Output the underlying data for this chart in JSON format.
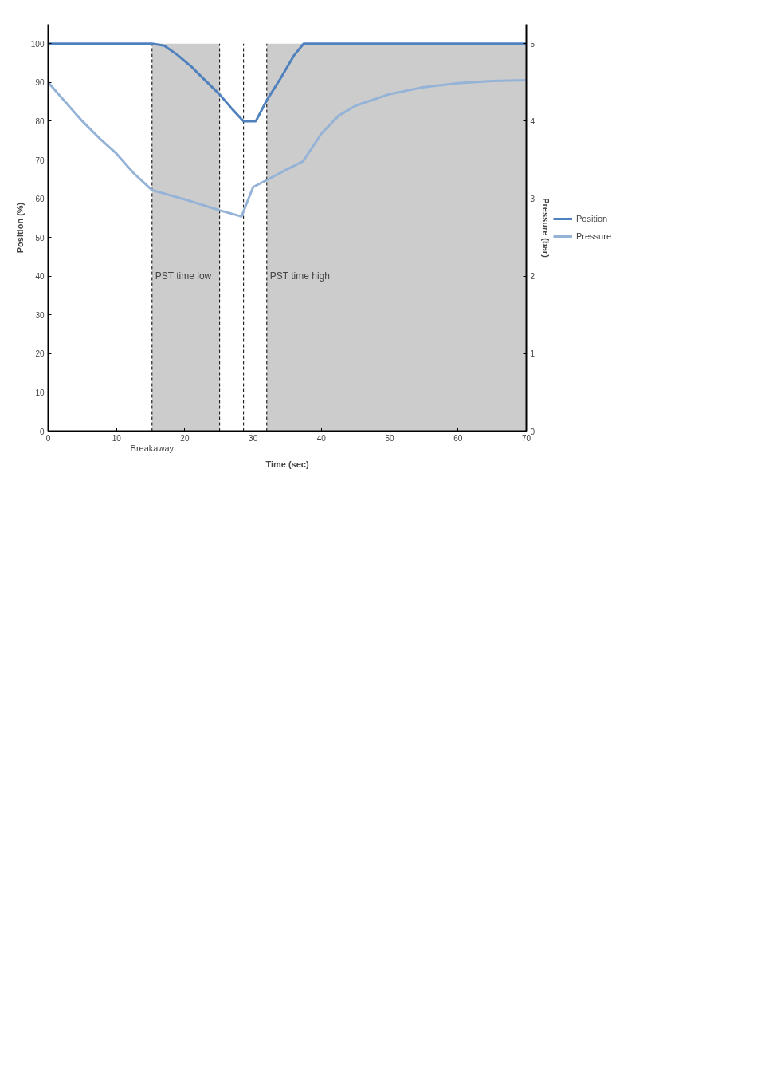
{
  "chart_data": {
    "type": "line",
    "xlabel": "Time (sec)",
    "ylabel": "Position (%)",
    "y2label": "Pressure (bar)",
    "xlim": [
      0,
      70
    ],
    "xticks": [
      0,
      10,
      20,
      30,
      40,
      50,
      60,
      70
    ],
    "ylim": [
      0,
      105
    ],
    "yticks": [
      0,
      10,
      20,
      30,
      40,
      50,
      60,
      70,
      80,
      90,
      100
    ],
    "y2lim": [
      0,
      5.25
    ],
    "y2ticks": [
      0,
      1,
      2,
      3,
      4,
      5
    ],
    "grid": false,
    "legend": "right",
    "marker": "none",
    "line_style": "solid",
    "series": [
      {
        "name": "Position",
        "color": "#4f81bd",
        "x": [
          0,
          15.2,
          17,
          19,
          21,
          23,
          25.1,
          27,
          28.6,
          30.4,
          32,
          34,
          36,
          37.4,
          70
        ],
        "values": [
          100,
          100,
          99.5,
          97,
          94,
          90.5,
          86.9,
          83,
          80,
          80,
          85.4,
          91,
          97,
          100,
          100
        ]
      },
      {
        "name": "Pressure",
        "color": "#95b3d7",
        "axis": "y2",
        "x": [
          0,
          2.5,
          5,
          7.5,
          10,
          12.5,
          15.2,
          20,
          25.1,
          28.3,
          30,
          32,
          35,
          37.3,
          40,
          42.5,
          45,
          50,
          55,
          60,
          65,
          70
        ],
        "values": [
          4.5,
          4.25,
          4.0,
          3.78,
          3.58,
          3.33,
          3.11,
          2.99,
          2.85,
          2.77,
          3.15,
          3.24,
          3.38,
          3.48,
          3.84,
          4.07,
          4.2,
          4.35,
          4.44,
          4.49,
          4.52,
          4.53
        ]
      }
    ],
    "bands": [
      {
        "axis": "x",
        "from": 15.2,
        "to": 25.1,
        "label": "PST time low",
        "color": "#cccccc"
      },
      {
        "axis": "x",
        "from": 32,
        "to": 70,
        "label": "PST time high",
        "color": "#cccccc"
      }
    ],
    "ref_lines": [
      {
        "axis": "x",
        "value": 15.2,
        "label": "Breakaway",
        "line_style": "dashed",
        "color": "#000000"
      },
      {
        "axis": "x",
        "value": 25.1,
        "line_style": "dashed",
        "color": "#000000"
      },
      {
        "axis": "x",
        "value": 28.6,
        "line_style": "dashed",
        "color": "#000000"
      },
      {
        "axis": "x",
        "value": 32,
        "line_style": "dashed",
        "color": "#000000"
      }
    ]
  }
}
